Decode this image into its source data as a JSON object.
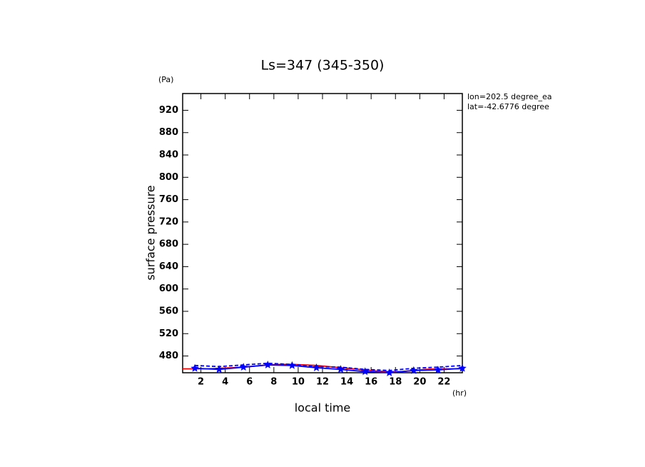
{
  "chart_data": {
    "type": "line",
    "title": "Ls=347 (345-350)",
    "x_label": "local time",
    "y_label": "surface pressure",
    "x_unit": "(hr)",
    "y_unit": "(Pa)",
    "annotations": [
      "lon=202.5 degree_ea",
      "lat=-42.6776 degree"
    ],
    "xlim": [
      0.5,
      23.5
    ],
    "ylim": [
      450,
      950
    ],
    "xticks": [
      2,
      4,
      6,
      8,
      10,
      12,
      14,
      16,
      18,
      20,
      22
    ],
    "yticks": [
      480,
      520,
      560,
      600,
      640,
      680,
      720,
      760,
      800,
      840,
      880,
      920
    ],
    "series": [
      {
        "color": "#ff0000",
        "dashed": false,
        "markers": false,
        "x": [
          0.5,
          1.5,
          2.5,
          3.5,
          4.5,
          5.5,
          6.5,
          7.5,
          8.5,
          9.5,
          10.5,
          11.5,
          12.5,
          13.5,
          14.5,
          15.5,
          16.5,
          17.5,
          18.5,
          19.5,
          20.5,
          21.5,
          22.5,
          23.5
        ],
        "values": [
          457,
          457,
          457,
          458,
          459,
          460,
          462,
          464,
          465,
          465,
          464,
          463,
          461,
          459,
          457,
          455,
          453,
          452,
          452,
          454,
          456,
          457,
          457,
          457
        ]
      },
      {
        "color": "#0000ff",
        "dashed": true,
        "markers": false,
        "x": [
          1.5,
          3.5,
          5.5,
          7.5,
          9.5,
          11.5,
          13.5,
          15.5,
          17.5,
          19.5,
          21.5,
          23.5
        ],
        "values": [
          463,
          461,
          464,
          467,
          465,
          461,
          460,
          456,
          454,
          458,
          460,
          463
        ]
      },
      {
        "color": "#0000ff",
        "dashed": false,
        "markers": true,
        "x": [
          1.5,
          3.5,
          5.5,
          7.5,
          9.5,
          11.5,
          13.5,
          15.5,
          17.5,
          19.5,
          21.5,
          23.5
        ],
        "values": [
          458,
          456,
          460,
          464,
          463,
          459,
          456,
          452,
          450,
          454,
          455,
          458
        ]
      }
    ]
  }
}
